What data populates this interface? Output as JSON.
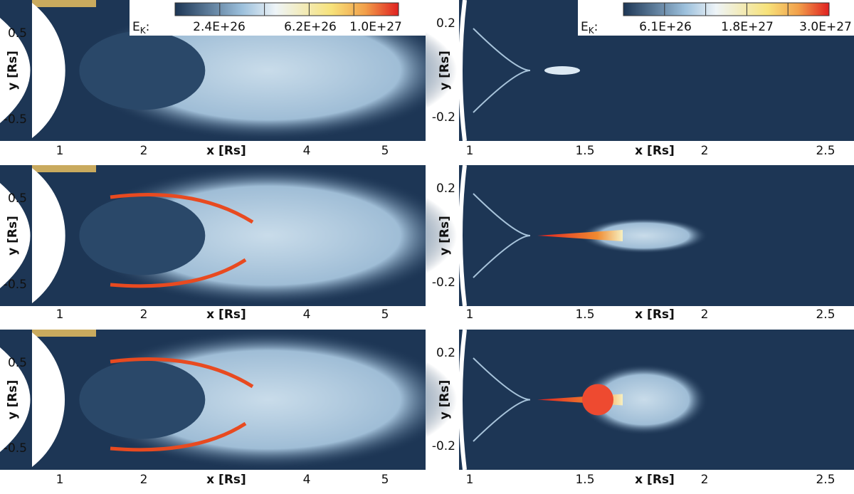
{
  "colorbars": [
    {
      "label": "E",
      "subscript": "K",
      "suffix": ":",
      "ticks": [
        "2.4E+26",
        "6.2E+26",
        "1.0E+27"
      ]
    },
    {
      "label": "E",
      "subscript": "K",
      "suffix": ":",
      "ticks": [
        "6.1E+26",
        "1.8E+27",
        "3.0E+27"
      ]
    }
  ],
  "panels": [
    {
      "xlabel": "x [Rs]",
      "ylabel": "y [Rs]",
      "xticks": [
        "1",
        "2",
        "4",
        "5"
      ],
      "yticks": [
        "0.5",
        "-0.5"
      ]
    },
    {
      "xlabel": "x [Rs]",
      "ylabel": "y [Rs]",
      "xticks": [
        "1",
        "1.5",
        "2",
        "2.5"
      ],
      "yticks": [
        "0.2",
        "-0.2"
      ]
    },
    {
      "xlabel": "x [Rs]",
      "ylabel": "y [Rs]",
      "xticks": [
        "1",
        "2",
        "4",
        "5"
      ],
      "yticks": [
        "0.5",
        "-0.5"
      ]
    },
    {
      "xlabel": "x [Rs]",
      "ylabel": "y [Rs]",
      "xticks": [
        "1",
        "1.5",
        "2",
        "2.5"
      ],
      "yticks": [
        "0.2",
        "-0.2"
      ]
    },
    {
      "xlabel": "x [Rs]",
      "ylabel": "y [Rs]",
      "xticks": [
        "1",
        "2",
        "4",
        "5"
      ],
      "yticks": [
        "0.5",
        "-0.5"
      ]
    },
    {
      "xlabel": "x [Rs]",
      "ylabel": "y [Rs]",
      "xticks": [
        "1",
        "1.5",
        "2",
        "2.5"
      ],
      "yticks": [
        "0.2",
        "-0.2"
      ]
    }
  ]
}
